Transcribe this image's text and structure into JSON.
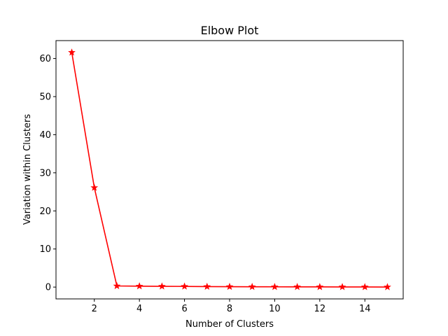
{
  "chart_data": {
    "type": "line",
    "title": "Elbow Plot",
    "xlabel": "Number of Clusters",
    "ylabel": "Variation within Clusters",
    "x": [
      1,
      2,
      3,
      4,
      5,
      6,
      7,
      8,
      9,
      10,
      11,
      12,
      13,
      14,
      15
    ],
    "series": [
      {
        "values": [
          61.6,
          26.1,
          0.3,
          0.25,
          0.2,
          0.18,
          0.12,
          0.1,
          0.08,
          0.07,
          0.06,
          0.05,
          0.04,
          0.03,
          0.02
        ],
        "color": "#ff0000",
        "marker": "star"
      }
    ],
    "xlim": [
      0.3,
      15.7
    ],
    "ylim": [
      -3.1,
      64.7
    ],
    "xticks": [
      2,
      4,
      6,
      8,
      10,
      12,
      14
    ],
    "yticks": [
      0,
      10,
      20,
      30,
      40,
      50,
      60
    ],
    "grid": false
  }
}
